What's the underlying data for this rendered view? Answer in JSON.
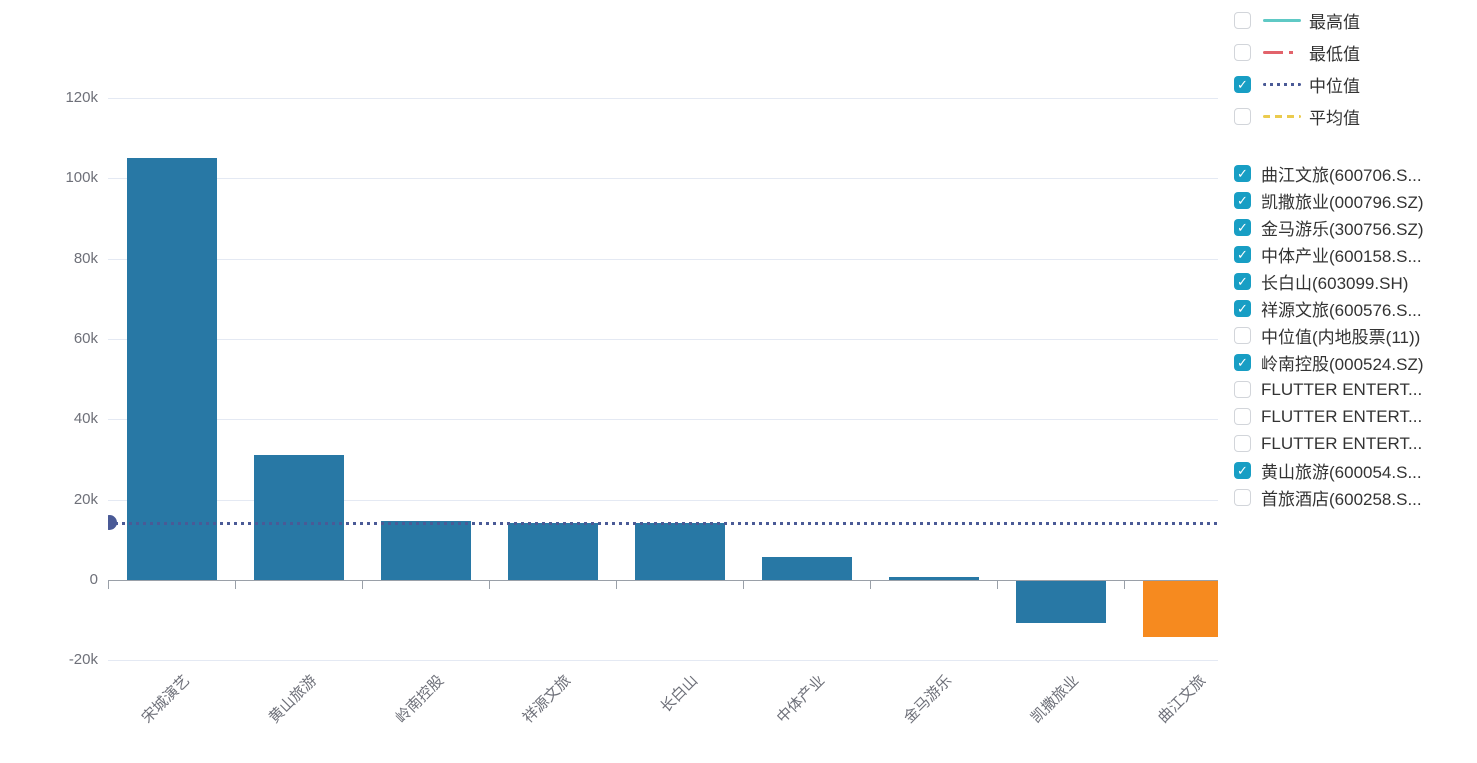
{
  "chart_data": {
    "type": "bar",
    "title": "",
    "xlabel": "",
    "ylabel": "",
    "categories": [
      "宋城演艺",
      "黄山旅游",
      "岭南控股",
      "祥源文旅",
      "长白山",
      "中体产业",
      "金马游乐",
      "凯撒旅业",
      "曲江文旅"
    ],
    "values": [
      105000,
      31000,
      14700,
      14300,
      14200,
      5700,
      800,
      -10400,
      -13900
    ],
    "highlight_index": 8,
    "median_line_value": 14200,
    "yticks": [
      {
        "value": 120000,
        "label": "120k"
      },
      {
        "value": 100000,
        "label": "100k"
      },
      {
        "value": 80000,
        "label": "80k"
      },
      {
        "value": 60000,
        "label": "60k"
      },
      {
        "value": 40000,
        "label": "40k"
      },
      {
        "value": 20000,
        "label": "20k"
      },
      {
        "value": 0,
        "label": "0"
      },
      {
        "value": -20000,
        "label": "-20k"
      }
    ],
    "ylim": [
      -20000,
      132000
    ],
    "grid": true,
    "legend_position": "right",
    "colors": {
      "bar": "#2878A5",
      "bar_highlight": "#F68A1F",
      "median_line": "#4A5A96",
      "gridline": "#E4E9F3",
      "axis_line": "#9AA0A8",
      "axis_text": "#6E7079"
    }
  },
  "legend_stats": {
    "items": [
      {
        "label": "最高值",
        "checked": false,
        "line_style": "solid",
        "color": "#5FC9C5"
      },
      {
        "label": "最低值",
        "checked": false,
        "line_style": "dash-dot",
        "color": "#E2636B"
      },
      {
        "label": "中位值",
        "checked": true,
        "line_style": "dotted",
        "color": "#4A5A96"
      },
      {
        "label": "平均值",
        "checked": false,
        "line_style": "dashed",
        "color": "#EBCB4E"
      }
    ]
  },
  "legend_series": {
    "checkbox_color": "#189EC4",
    "check_glyph": "✓",
    "items": [
      {
        "label": "曲江文旅(600706.S...",
        "checked": true
      },
      {
        "label": "凯撒旅业(000796.SZ)",
        "checked": true
      },
      {
        "label": "金马游乐(300756.SZ)",
        "checked": true
      },
      {
        "label": "中体产业(600158.S...",
        "checked": true
      },
      {
        "label": "长白山(603099.SH)",
        "checked": true
      },
      {
        "label": "祥源文旅(600576.S...",
        "checked": true
      },
      {
        "label": "中位值(内地股票(11))",
        "checked": false
      },
      {
        "label": "岭南控股(000524.SZ)",
        "checked": true
      },
      {
        "label": "FLUTTER ENTERT...",
        "checked": false
      },
      {
        "label": "FLUTTER ENTERT...",
        "checked": false
      },
      {
        "label": "FLUTTER ENTERT...",
        "checked": false
      },
      {
        "label": "黄山旅游(600054.S...",
        "checked": true
      },
      {
        "label": "首旅酒店(600258.S...",
        "checked": false
      }
    ]
  }
}
